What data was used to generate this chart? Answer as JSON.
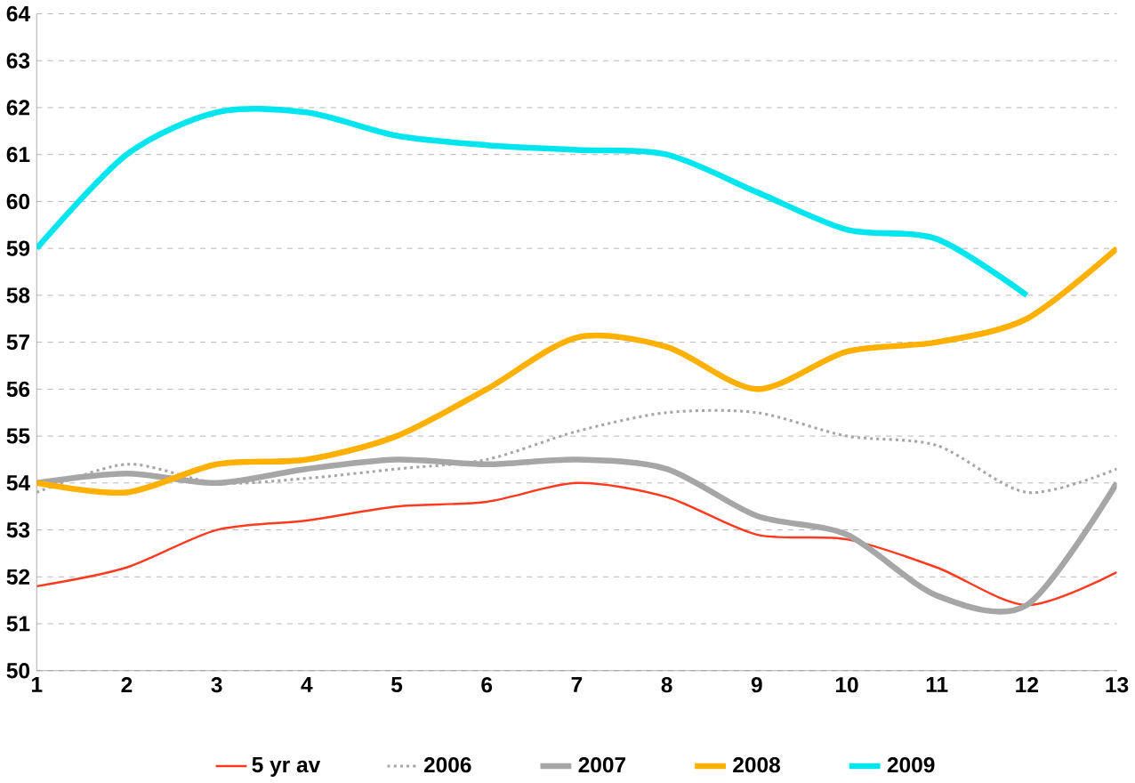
{
  "chart_data": {
    "type": "line",
    "x": [
      1,
      2,
      3,
      4,
      5,
      6,
      7,
      8,
      9,
      10,
      11,
      12,
      13
    ],
    "xlim": [
      1,
      13
    ],
    "xticks": [
      1,
      2,
      3,
      4,
      5,
      6,
      7,
      8,
      9,
      10,
      11,
      12,
      13
    ],
    "ylim": [
      50,
      64
    ],
    "yticks": [
      50,
      51,
      52,
      53,
      54,
      55,
      56,
      57,
      58,
      59,
      60,
      61,
      62,
      63,
      64
    ],
    "grid": "y",
    "legend": "bottom",
    "marker": "none",
    "series": [
      {
        "name": "5 yr av",
        "color": "#ff3b1f",
        "line_style": "solid",
        "values": [
          51.8,
          52.2,
          53.0,
          53.2,
          53.5,
          53.6,
          54.0,
          53.7,
          52.9,
          52.8,
          52.2,
          51.4,
          52.1
        ]
      },
      {
        "name": "2006",
        "color": "#a6a6a6",
        "line_style": "dotted",
        "values": [
          53.8,
          54.4,
          54.0,
          54.1,
          54.3,
          54.5,
          55.1,
          55.5,
          55.5,
          55.0,
          54.8,
          53.8,
          54.3
        ]
      },
      {
        "name": "2007",
        "color": "#a6a6a6",
        "line_style": "solid",
        "values": [
          54.0,
          54.2,
          54.0,
          54.3,
          54.5,
          54.4,
          54.5,
          54.3,
          53.3,
          52.9,
          51.6,
          51.4,
          54.0
        ]
      },
      {
        "name": "2008",
        "color": "#ffb000",
        "line_style": "solid",
        "values": [
          54.0,
          53.8,
          54.4,
          54.5,
          55.0,
          56.0,
          57.1,
          56.9,
          56.0,
          56.8,
          57.0,
          57.5,
          59.0
        ]
      },
      {
        "name": "2009",
        "color": "#00e5ee",
        "line_style": "solid",
        "values": [
          59.0,
          61.0,
          61.9,
          61.9,
          61.4,
          61.2,
          61.1,
          61.0,
          60.2,
          59.4,
          59.2,
          58.0,
          null
        ]
      }
    ]
  }
}
